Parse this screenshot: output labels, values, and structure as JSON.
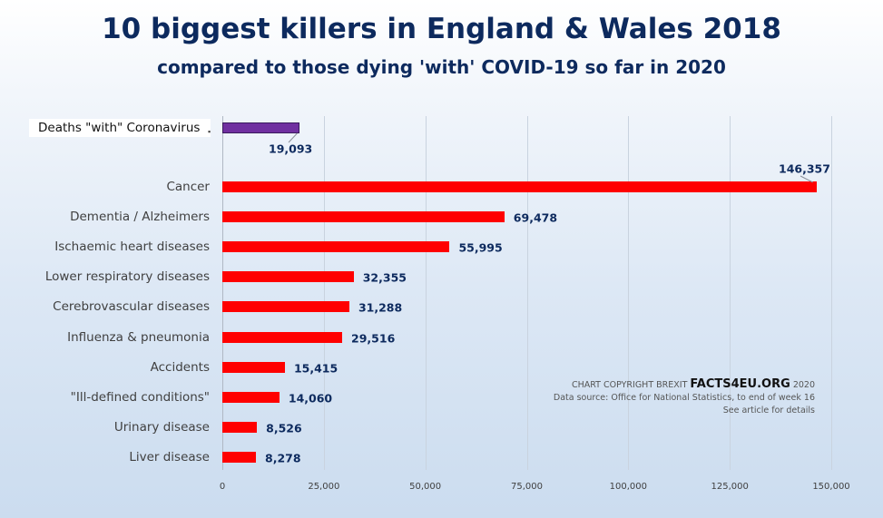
{
  "title": "10 biggest killers in England & Wales 2018",
  "subtitle": "compared to those dying 'with' COVID-19 so far in 2020",
  "colors": {
    "covid": "#7030a0",
    "causes": "#ff0000",
    "title": "#0d2a5e"
  },
  "credit": {
    "prefix": "CHART COPYRIGHT BREXIT",
    "brand": "FACTS4EU.ORG",
    "year": "2020",
    "source": "Data source: Office for National Statistics, to end of week 16",
    "note": "See article for details"
  },
  "chart_data": {
    "type": "bar",
    "orientation": "horizontal",
    "xlim": [
      0,
      150000
    ],
    "xticks": [
      "0",
      "25,000",
      "50,000",
      "75,000",
      "100,000",
      "125,000",
      "150,000"
    ],
    "xtick_values": [
      0,
      25000,
      50000,
      75000,
      100000,
      125000,
      150000
    ],
    "covid": {
      "label": "Deaths \"with\" Coronavirus",
      "value": 19093,
      "value_label": "19,093"
    },
    "categories": [
      "Cancer",
      "Dementia / Alzheimers",
      "Ischaemic heart diseases",
      "Lower respiratory diseases",
      "Cerebrovascular diseases",
      "Influenza & pneumonia",
      "Accidents",
      "\"Ill-defined conditions\"",
      "Urinary disease",
      "Liver disease"
    ],
    "values": [
      146357,
      69478,
      55995,
      32355,
      31288,
      29516,
      15415,
      14060,
      8526,
      8278
    ],
    "value_labels": [
      "146,357",
      "69,478",
      "55,995",
      "32,355",
      "31,288",
      "29,516",
      "15,415",
      "14,060",
      "8,526",
      "8,278"
    ]
  }
}
